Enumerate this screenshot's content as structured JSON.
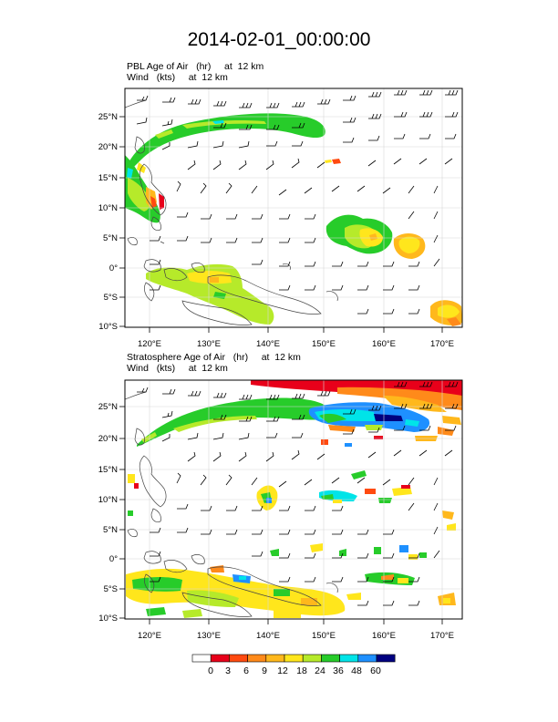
{
  "title": "2014-02-01_00:00:00",
  "panels": [
    {
      "field": "PBL Age of Air",
      "units": "(hr)",
      "level": "at  12 km",
      "wind": "Wind",
      "wind_units": "(kts)",
      "wind_level": "at  12 km"
    },
    {
      "field": "Stratosphere Age of Air",
      "units": "(hr)",
      "level": "at  12 km",
      "wind": "Wind",
      "wind_units": "(kts)",
      "wind_level": "at  12 km"
    }
  ],
  "lat_ticks": [
    "25°N",
    "20°N",
    "15°N",
    "10°N",
    "5°N",
    "0°",
    "5°S",
    "10°S"
  ],
  "lon_ticks": [
    "120°E",
    "130°E",
    "140°E",
    "150°E",
    "160°E",
    "170°E"
  ],
  "colorbar": {
    "labels": [
      "0",
      "3",
      "6",
      "9",
      "12",
      "18",
      "24",
      "36",
      "48",
      "60"
    ],
    "colors": [
      "#ffffff",
      "#e8001a",
      "#ff4a10",
      "#ff8a1a",
      "#ffb81c",
      "#ffe61c",
      "#b6ea2a",
      "#27cc2a",
      "#00e4e8",
      "#1e90ff",
      "#000080"
    ]
  }
}
